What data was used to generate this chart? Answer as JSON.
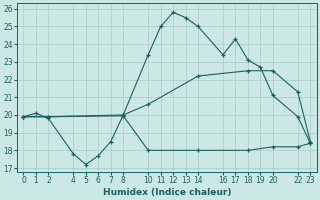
{
  "xlabel": "Humidex (Indice chaleur)",
  "background_color": "#cce8e5",
  "grid_color": "#aed0cc",
  "line_color": "#1a6060",
  "xlim": [
    -0.5,
    23.5
  ],
  "ylim": [
    16.8,
    26.3
  ],
  "yticks": [
    17,
    18,
    19,
    20,
    21,
    22,
    23,
    24,
    25,
    26
  ],
  "xticks": [
    0,
    1,
    2,
    4,
    5,
    6,
    7,
    8,
    10,
    11,
    12,
    13,
    14,
    16,
    17,
    18,
    19,
    20,
    22,
    23
  ],
  "line1_x": [
    0,
    1,
    2,
    4,
    5,
    6,
    7,
    8,
    10,
    11,
    12,
    13,
    14,
    16,
    17,
    18,
    19,
    20,
    22,
    23
  ],
  "line1_y": [
    19.9,
    20.1,
    19.8,
    17.8,
    17.2,
    17.7,
    18.5,
    20.0,
    23.4,
    25.0,
    25.8,
    25.5,
    25.0,
    23.4,
    24.3,
    23.1,
    22.7,
    21.1,
    19.9,
    18.4
  ],
  "line2_x": [
    0,
    2,
    8,
    10,
    14,
    18,
    20,
    22,
    23
  ],
  "line2_y": [
    19.9,
    19.9,
    20.0,
    20.6,
    22.2,
    22.5,
    22.5,
    21.3,
    18.5
  ],
  "line3_x": [
    0,
    2,
    8,
    10,
    14,
    18,
    20,
    22,
    23
  ],
  "line3_y": [
    19.9,
    19.9,
    19.95,
    18.0,
    18.0,
    18.0,
    18.2,
    18.2,
    18.4
  ]
}
